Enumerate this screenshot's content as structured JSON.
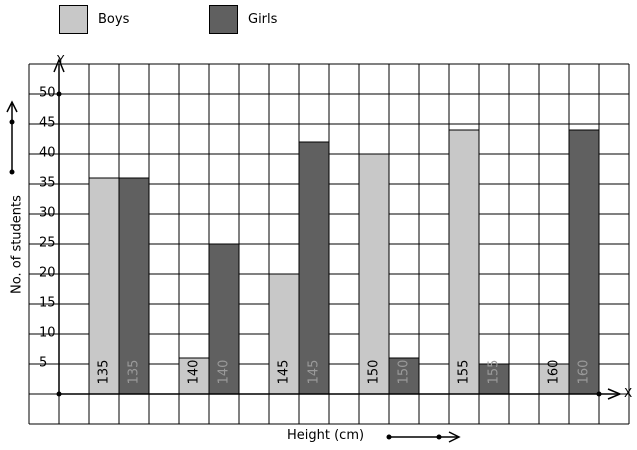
{
  "legend": {
    "boys_label": "Boys",
    "girls_label": "Girls"
  },
  "axis": {
    "y_letter": "Y",
    "x_letter": "X",
    "ylabel": "No. of students",
    "xlabel": "Height (cm)"
  },
  "colors": {
    "boys": "#c8c8c8",
    "girls": "#606060",
    "grid": "#000000"
  },
  "chart_data": {
    "type": "bar",
    "categories": [
      "135",
      "140",
      "145",
      "150",
      "155",
      "160"
    ],
    "series": [
      {
        "name": "Boys",
        "values": [
          36,
          6,
          20,
          40,
          44,
          5
        ]
      },
      {
        "name": "Girls",
        "values": [
          36,
          25,
          42,
          6,
          5,
          44
        ]
      }
    ],
    "xlabel": "Height (cm)",
    "ylabel": "No. of students",
    "yticks": [
      5,
      10,
      15,
      20,
      25,
      30,
      35,
      40,
      45,
      50
    ],
    "ylim": [
      0,
      55
    ],
    "grid": true,
    "legend_position": "top-left"
  }
}
